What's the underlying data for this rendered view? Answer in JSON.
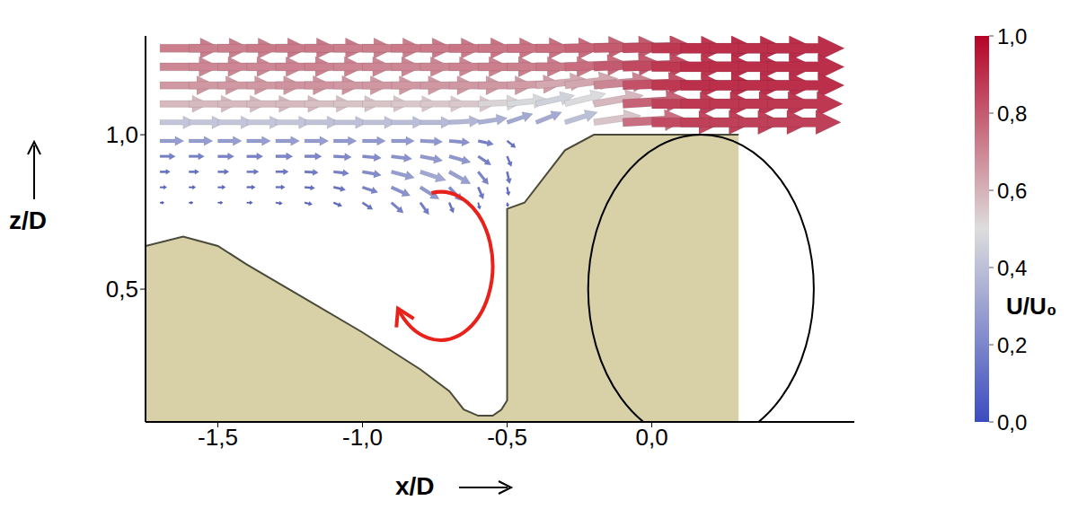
{
  "chart_data": {
    "type": "vector_field",
    "x_label": "x/D",
    "y_label": "z/D",
    "xlim": [
      -1.75,
      0.7
    ],
    "xticks": [
      {
        "value": -1.5,
        "label": "-1,5"
      },
      {
        "value": -1,
        "label": "-1,0"
      },
      {
        "value": -0.5,
        "label": "-0,5"
      },
      {
        "value": 0,
        "label": "0,0"
      }
    ],
    "ylim": [
      0.07,
      1.32
    ],
    "yticks": [
      {
        "value": 0.5,
        "label": "0,5"
      },
      {
        "value": 1,
        "label": "1,0"
      }
    ],
    "vectors": {
      "x": [
        -1.7,
        -1.6,
        -1.5,
        -1.4,
        -1.3,
        -1.2,
        -1.1,
        -1.0,
        -0.9,
        -0.8,
        -0.7,
        -0.6,
        -0.5,
        -0.4,
        -0.3,
        -0.2,
        -0.1,
        0.0,
        0.1,
        0.2,
        0.3,
        0.4
      ],
      "z": [
        1.28,
        1.22,
        1.16,
        1.1,
        1.04,
        0.98,
        0.93,
        0.88,
        0.83,
        0.78
      ],
      "u": [
        [
          0.72,
          0.72,
          0.72,
          0.73,
          0.73,
          0.73,
          0.72,
          0.72,
          0.73,
          0.73,
          0.74,
          0.74,
          0.75,
          0.76,
          0.78,
          0.8,
          0.84,
          0.88,
          0.9,
          0.9,
          0.9,
          0.9
        ],
        [
          0.7,
          0.7,
          0.7,
          0.7,
          0.71,
          0.71,
          0.7,
          0.7,
          0.7,
          0.7,
          0.71,
          0.72,
          0.72,
          0.73,
          0.76,
          0.8,
          0.84,
          0.88,
          0.9,
          0.9,
          0.9,
          0.9
        ],
        [
          0.66,
          0.66,
          0.66,
          0.66,
          0.67,
          0.67,
          0.66,
          0.66,
          0.66,
          0.66,
          0.66,
          0.66,
          0.65,
          0.62,
          0.62,
          0.7,
          0.82,
          0.88,
          0.9,
          0.9,
          0.9,
          0.9
        ],
        [
          0.58,
          0.58,
          0.58,
          0.58,
          0.58,
          0.57,
          0.56,
          0.56,
          0.55,
          0.55,
          0.55,
          0.52,
          0.48,
          0.45,
          0.48,
          0.58,
          0.78,
          0.86,
          0.88,
          0.88,
          0.88,
          0.88
        ],
        [
          0.42,
          0.42,
          0.42,
          0.42,
          0.42,
          0.41,
          0.4,
          0.4,
          0.39,
          0.38,
          0.37,
          0.34,
          0.3,
          0.3,
          0.38,
          0.55,
          0.75,
          0.84,
          0.86,
          0.86,
          0.86,
          0.86
        ],
        [
          0.28,
          0.28,
          0.28,
          0.28,
          0.28,
          0.28,
          0.27,
          0.27,
          0.27,
          0.26,
          0.24,
          0.18,
          0.1,
          null,
          null,
          null,
          null,
          null,
          null,
          null,
          null,
          null
        ],
        [
          0.18,
          0.18,
          0.19,
          0.19,
          0.2,
          0.2,
          0.21,
          0.22,
          0.24,
          0.26,
          0.25,
          0.15,
          0.05,
          null,
          null,
          null,
          null,
          null,
          null,
          null,
          null,
          null
        ],
        [
          0.12,
          0.12,
          0.13,
          0.14,
          0.15,
          0.16,
          0.18,
          0.22,
          0.27,
          0.3,
          0.25,
          0.12,
          0.03,
          null,
          null,
          null,
          null,
          null,
          null,
          null,
          null,
          null
        ],
        [
          0.08,
          0.08,
          0.09,
          0.1,
          0.11,
          0.12,
          0.14,
          0.18,
          0.22,
          0.22,
          0.15,
          0.06,
          0.02,
          null,
          null,
          null,
          null,
          null,
          null,
          null,
          null,
          null
        ],
        [
          0.05,
          0.05,
          0.06,
          0.07,
          0.08,
          0.09,
          0.1,
          0.12,
          0.14,
          0.1,
          0.05,
          0.02,
          0.01,
          null,
          null,
          null,
          null,
          null,
          null,
          null,
          null,
          null
        ]
      ],
      "w": [
        [
          0,
          0,
          0,
          0,
          0,
          0,
          0,
          0,
          0,
          0,
          0,
          0,
          0,
          0,
          0.02,
          0.02,
          0.02,
          0,
          0,
          0,
          0,
          0
        ],
        [
          0,
          0,
          0,
          0,
          0,
          0,
          0,
          0,
          0,
          0,
          0,
          0,
          0,
          0,
          0.03,
          0.04,
          0.03,
          0,
          0,
          0,
          0,
          0
        ],
        [
          0,
          0,
          0,
          0,
          0,
          0,
          0,
          0,
          0,
          0,
          0,
          0,
          0.02,
          0.06,
          0.08,
          0.06,
          0.03,
          0,
          0,
          0,
          0,
          0
        ],
        [
          0,
          0,
          0,
          0,
          0,
          0,
          0,
          0,
          0,
          0,
          0,
          0.02,
          0.05,
          0.1,
          0.12,
          0.1,
          0.05,
          0,
          0,
          0,
          0,
          0
        ],
        [
          0,
          0,
          0,
          0,
          0,
          0,
          0,
          0,
          0,
          0,
          0.02,
          0.05,
          0.1,
          0.12,
          0.12,
          0.08,
          0.04,
          0,
          0,
          0,
          0,
          0
        ],
        [
          0,
          0,
          0,
          0,
          0,
          0,
          0,
          0,
          0,
          -0.01,
          -0.02,
          -0.04,
          -0.08,
          null,
          null,
          null,
          null,
          null,
          null,
          null,
          null,
          null
        ],
        [
          0,
          0,
          0,
          0,
          0,
          0,
          -0.01,
          -0.02,
          -0.03,
          -0.05,
          -0.07,
          -0.1,
          -0.12,
          null,
          null,
          null,
          null,
          null,
          null,
          null,
          null,
          null
        ],
        [
          0,
          0,
          0,
          0,
          0,
          -0.01,
          -0.02,
          -0.04,
          -0.07,
          -0.1,
          -0.14,
          -0.15,
          -0.14,
          null,
          null,
          null,
          null,
          null,
          null,
          null,
          null,
          null
        ],
        [
          0,
          0,
          0,
          0,
          0,
          -0.01,
          -0.03,
          -0.06,
          -0.1,
          -0.14,
          -0.16,
          -0.14,
          -0.1,
          null,
          null,
          null,
          null,
          null,
          null,
          null,
          null,
          null
        ],
        [
          0,
          0,
          0,
          0,
          -0.01,
          -0.02,
          -0.04,
          -0.08,
          -0.12,
          -0.14,
          -0.12,
          -0.08,
          -0.05,
          null,
          null,
          null,
          null,
          null,
          null,
          null,
          null,
          null
        ]
      ]
    },
    "colorbar": {
      "label": "U/U₀",
      "range": [
        0,
        1
      ],
      "ticks": [
        {
          "value": 0,
          "label": "0,0"
        },
        {
          "value": 0.2,
          "label": "0,2"
        },
        {
          "value": 0.4,
          "label": "0,4"
        },
        {
          "value": 0.6,
          "label": "0,6"
        },
        {
          "value": 0.8,
          "label": "0,8"
        },
        {
          "value": 1,
          "label": "1,0"
        }
      ],
      "colors": [
        "#3b4cc0",
        "#dddddd",
        "#b40426"
      ]
    },
    "bed": {
      "x": [
        -1.75,
        -1.62,
        -1.5,
        -1.4,
        -1.2,
        -1.0,
        -0.8,
        -0.7,
        -0.65,
        -0.6,
        -0.55,
        -0.52,
        -0.5,
        -0.5,
        -0.44,
        -0.3,
        -0.2,
        0.3
      ],
      "z": [
        0.64,
        0.67,
        0.64,
        0.58,
        0.47,
        0.36,
        0.24,
        0.17,
        0.11,
        0.09,
        0.09,
        0.11,
        0.14,
        0.76,
        0.78,
        0.95,
        1.0,
        1.0
      ],
      "color": "#d8d0a6"
    },
    "pile_outline": {
      "center": [
        0.17,
        0.5
      ],
      "radii": [
        0.39,
        0.5
      ]
    },
    "vortex": {
      "center": [
        -0.73,
        0.575
      ],
      "radii": [
        0.18,
        0.24
      ],
      "color": "#e8211b"
    }
  }
}
